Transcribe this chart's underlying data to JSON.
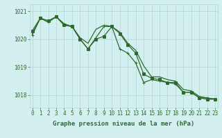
{
  "series": [
    {
      "values": [
        1020.2,
        1020.75,
        1020.65,
        1020.8,
        1020.55,
        1020.45,
        1020.05,
        1019.85,
        1020.35,
        1020.5,
        1020.45,
        1020.25,
        1019.85,
        1019.6,
        1019.05,
        1018.65,
        1018.65,
        1018.55,
        1018.5,
        1018.2,
        1018.15,
        1017.95,
        1017.9,
        1017.85
      ],
      "color": "#2d6a2d",
      "linewidth": 0.9,
      "marker": null,
      "markersize": 0
    },
    {
      "values": [
        1020.15,
        1020.75,
        1020.6,
        1020.8,
        1020.5,
        1020.45,
        1020.0,
        1019.65,
        1020.05,
        1020.45,
        1020.45,
        1019.65,
        1019.5,
        1019.15,
        1018.45,
        1018.55,
        1018.5,
        1018.45,
        1018.4,
        1018.1,
        1018.1,
        1017.9,
        1017.9,
        1017.85
      ],
      "color": "#2d6a2d",
      "linewidth": 0.9,
      "marker": "+",
      "markersize": 3.5
    },
    {
      "values": [
        1020.3,
        1020.75,
        1020.65,
        1020.8,
        1020.5,
        1020.45,
        1020.0,
        1019.65,
        1020.0,
        1020.1,
        1020.45,
        1020.2,
        1019.8,
        1019.5,
        1018.75,
        1018.6,
        1018.55,
        1018.45,
        1018.45,
        1018.1,
        1018.1,
        1017.9,
        1017.85,
        1017.85
      ],
      "color": "#2d6a2d",
      "linewidth": 0.9,
      "marker": "s",
      "markersize": 2.5
    }
  ],
  "hours": [
    0,
    1,
    2,
    3,
    4,
    5,
    6,
    7,
    8,
    9,
    10,
    11,
    12,
    13,
    14,
    15,
    16,
    17,
    18,
    19,
    20,
    21,
    22,
    23
  ],
  "xlim": [
    -0.3,
    23.3
  ],
  "ylim": [
    1017.55,
    1021.25
  ],
  "yticks": [
    1018,
    1019,
    1020,
    1021
  ],
  "xlabel": "Graphe pression niveau de la mer (hPa)",
  "bg_color": "#d4efef",
  "grid_color": "#aed4d4",
  "line_color": "#2d6a2d",
  "axis_color": "#2d6a2d",
  "tick_fontsize": 5.5,
  "xlabel_fontsize": 6.5
}
